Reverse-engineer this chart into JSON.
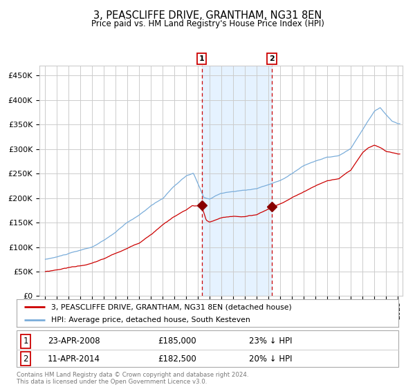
{
  "title": "3, PEASCLIFFE DRIVE, GRANTHAM, NG31 8EN",
  "subtitle": "Price paid vs. HM Land Registry's House Price Index (HPI)",
  "legend_line1": "3, PEASCLIFFE DRIVE, GRANTHAM, NG31 8EN (detached house)",
  "legend_line2": "HPI: Average price, detached house, South Kesteven",
  "marker1_date": "23-APR-2008",
  "marker1_price": 185000,
  "marker1_pct": "23% ↓ HPI",
  "marker2_date": "11-APR-2014",
  "marker2_price": 182500,
  "marker2_pct": "20% ↓ HPI",
  "footer": "Contains HM Land Registry data © Crown copyright and database right 2024.\nThis data is licensed under the Open Government Licence v3.0.",
  "hpi_color": "#7aadda",
  "price_color": "#cc0000",
  "marker_color": "#880000",
  "shade_color": "#ddeeff",
  "vline_color": "#cc0000",
  "grid_color": "#cccccc",
  "background_color": "#ffffff",
  "ylim": [
    0,
    470000
  ],
  "yticks": [
    0,
    50000,
    100000,
    150000,
    200000,
    250000,
    300000,
    350000,
    400000,
    450000
  ],
  "marker1_x": 2008.31,
  "marker2_x": 2014.28,
  "shade_x1": 2008.31,
  "shade_x2": 2014.28,
  "xlim_left": 1994.5,
  "xlim_right": 2025.4
}
